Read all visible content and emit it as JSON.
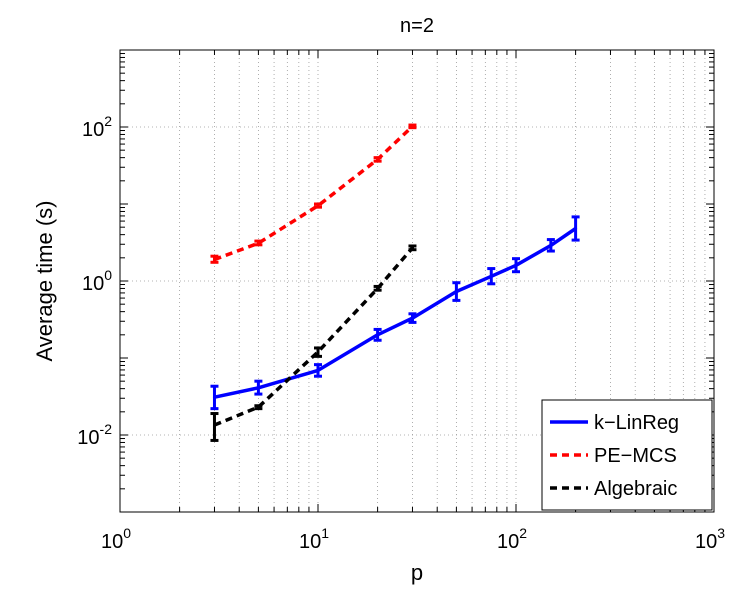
{
  "chart_data": {
    "type": "line",
    "title": "n=2",
    "xlabel": "p",
    "ylabel": "Average time (s)",
    "xscale": "log",
    "yscale": "log",
    "xlim": [
      1,
      1000
    ],
    "ylim": [
      0.001,
      1000
    ],
    "grid": true,
    "legend_position": "bottom-right",
    "x_ticks": [
      {
        "base": "10",
        "exp": "0",
        "value": 1
      },
      {
        "base": "10",
        "exp": "1",
        "value": 10
      },
      {
        "base": "10",
        "exp": "2",
        "value": 100
      },
      {
        "base": "10",
        "exp": "3",
        "value": 1000
      }
    ],
    "y_ticks": [
      {
        "base": "10",
        "exp": "-2",
        "value": 0.01
      },
      {
        "base": "10",
        "exp": "0",
        "value": 1
      },
      {
        "base": "10",
        "exp": "2",
        "value": 100
      }
    ],
    "series": [
      {
        "name": "k−LinReg",
        "color": "#0000ff",
        "style": "solid",
        "x": [
          3,
          5,
          10,
          20,
          30,
          50,
          75,
          100,
          150,
          200
        ],
        "y": [
          0.031,
          0.041,
          0.069,
          0.2,
          0.33,
          0.73,
          1.15,
          1.6,
          2.9,
          4.8
        ],
        "err_low": [
          0.022,
          0.034,
          0.058,
          0.17,
          0.29,
          0.56,
          0.92,
          1.32,
          2.45,
          3.4
        ],
        "err_high": [
          0.043,
          0.05,
          0.082,
          0.235,
          0.375,
          0.95,
          1.45,
          1.95,
          3.45,
          6.8
        ]
      },
      {
        "name": "PE−MCS",
        "color": "#ff0000",
        "style": "dashed",
        "x": [
          3,
          5,
          10,
          20,
          30
        ],
        "y": [
          1.9,
          3.1,
          9.5,
          38,
          102
        ],
        "err_low": [
          1.75,
          2.95,
          9.1,
          36,
          98
        ],
        "err_high": [
          2.1,
          3.3,
          10,
          40,
          106
        ]
      },
      {
        "name": "Algebraic",
        "color": "#000000",
        "style": "dashed",
        "x": [
          3,
          5,
          10,
          20,
          30
        ],
        "y": [
          0.0135,
          0.023,
          0.12,
          0.8,
          2.7
        ],
        "err_low": [
          0.0085,
          0.022,
          0.105,
          0.76,
          2.55
        ],
        "err_high": [
          0.019,
          0.024,
          0.135,
          0.85,
          2.85
        ]
      }
    ]
  }
}
